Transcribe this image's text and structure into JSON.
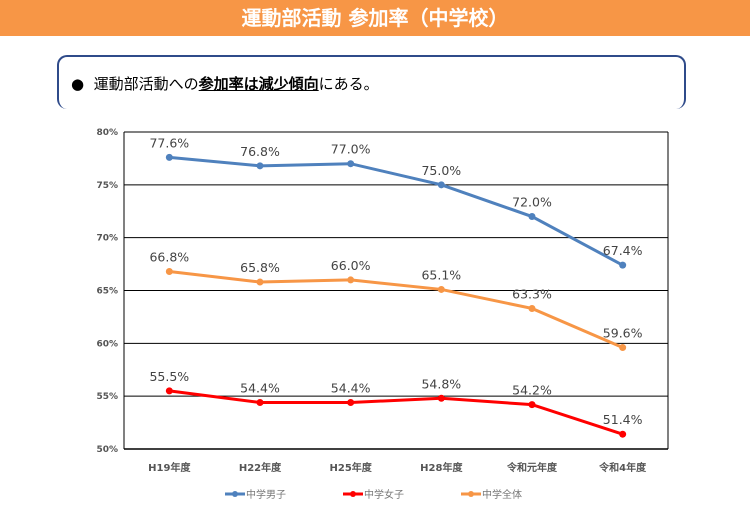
{
  "header": {
    "title": "運動部活動 参加率（中学校）"
  },
  "summary": {
    "bullet": "●",
    "prefix": "運動部活動への",
    "emphasis": "参加率は減少傾向",
    "suffix": "にある。"
  },
  "chart_data": {
    "type": "line",
    "categories": [
      "H19年度",
      "H22年度",
      "H25年度",
      "H28年度",
      "令和元年度",
      "令和4年度"
    ],
    "ylim": [
      50,
      80
    ],
    "yticks": [
      "50%",
      "55%",
      "60%",
      "65%",
      "70%",
      "75%",
      "80%"
    ],
    "grid": true,
    "legend_position": "bottom",
    "series": [
      {
        "name": "中学男子",
        "color": "#4f81bd",
        "values": [
          77.6,
          76.8,
          77.0,
          75.0,
          72.0,
          67.4
        ],
        "labels": [
          "77.6%",
          "76.8%",
          "77.0%",
          "75.0%",
          "72.0%",
          "67.4%"
        ]
      },
      {
        "name": "中学女子",
        "color": "#ff0000",
        "values": [
          55.5,
          54.4,
          54.4,
          54.8,
          54.2,
          51.4
        ],
        "labels": [
          "55.5%",
          "54.4%",
          "54.4%",
          "54.8%",
          "54.2%",
          "51.4%"
        ]
      },
      {
        "name": "中学全体",
        "color": "#f79646",
        "values": [
          66.8,
          65.8,
          66.0,
          65.1,
          63.3,
          59.6
        ],
        "labels": [
          "66.8%",
          "65.8%",
          "66.0%",
          "65.1%",
          "63.3%",
          "59.6%"
        ]
      }
    ]
  }
}
